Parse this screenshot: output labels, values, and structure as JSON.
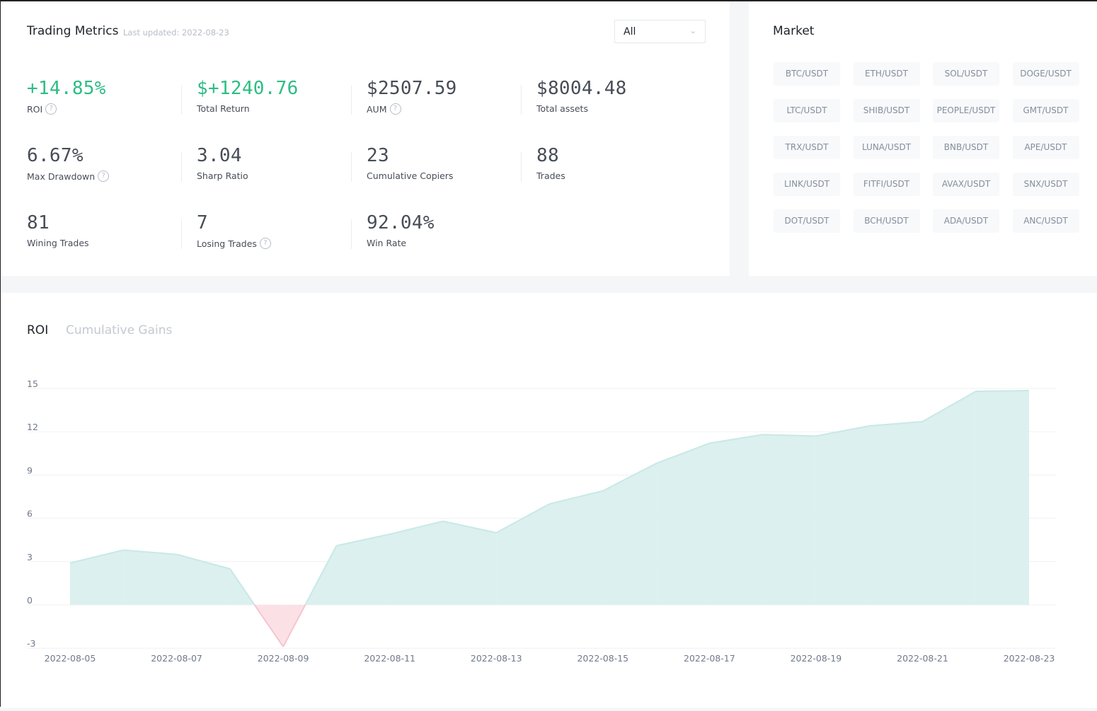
{
  "metrics": {
    "title": "Trading Metrics",
    "last_updated": "Last updated: 2022-08-23",
    "filter": "All",
    "items": [
      {
        "value": "+14.85%",
        "label": "ROI",
        "help": true,
        "green": true
      },
      {
        "value": "$+1240.76",
        "label": "Total Return",
        "help": false,
        "green": true
      },
      {
        "value": "$2507.59",
        "label": "AUM",
        "help": true,
        "green": false
      },
      {
        "value": "$8004.48",
        "label": "Total assets",
        "help": false,
        "green": false
      },
      {
        "value": "6.67%",
        "label": "Max Drawdown",
        "help": true,
        "green": false
      },
      {
        "value": "3.04",
        "label": "Sharp Ratio",
        "help": false,
        "green": false
      },
      {
        "value": "23",
        "label": "Cumulative Copiers",
        "help": false,
        "green": false
      },
      {
        "value": "88",
        "label": "Trades",
        "help": false,
        "green": false
      },
      {
        "value": "81",
        "label": "Wining Trades",
        "help": false,
        "green": false
      },
      {
        "value": "7",
        "label": "Losing Trades",
        "help": true,
        "green": false
      },
      {
        "value": "92.04%",
        "label": "Win Rate",
        "help": false,
        "green": false
      }
    ]
  },
  "market": {
    "title": "Market",
    "pairs": [
      "BTC/USDT",
      "ETH/USDT",
      "SOL/USDT",
      "DOGE/USDT",
      "LTC/USDT",
      "SHIB/USDT",
      "PEOPLE/USDT",
      "GMT/USDT",
      "TRX/USDT",
      "LUNA/USDT",
      "BNB/USDT",
      "APE/USDT",
      "LINK/USDT",
      "FITFI/USDT",
      "AVAX/USDT",
      "SNX/USDT",
      "DOT/USDT",
      "BCH/USDT",
      "ADA/USDT",
      "ANC/USDT"
    ]
  },
  "chart_tabs": {
    "active": "ROI",
    "inactive": "Cumulative Gains"
  },
  "chart_data": {
    "type": "area",
    "title": "ROI",
    "ylim": [
      -3,
      15
    ],
    "yticks": [
      15,
      12,
      9,
      6,
      3,
      0,
      -3
    ],
    "x": [
      "2022-08-05",
      "2022-08-06",
      "2022-08-07",
      "2022-08-08",
      "2022-08-09",
      "2022-08-10",
      "2022-08-11",
      "2022-08-12",
      "2022-08-13",
      "2022-08-14",
      "2022-08-15",
      "2022-08-16",
      "2022-08-17",
      "2022-08-18",
      "2022-08-19",
      "2022-08-20",
      "2022-08-21",
      "2022-08-22",
      "2022-08-23"
    ],
    "xticks": [
      "2022-08-05",
      "2022-08-07",
      "2022-08-09",
      "2022-08-11",
      "2022-08-13",
      "2022-08-15",
      "2022-08-17",
      "2022-08-19",
      "2022-08-21",
      "2022-08-23"
    ],
    "values": [
      2.9,
      3.8,
      3.5,
      2.5,
      -2.9,
      4.1,
      4.9,
      5.8,
      5.0,
      7.0,
      7.9,
      9.8,
      11.2,
      11.8,
      11.7,
      12.4,
      12.7,
      14.8,
      14.85
    ],
    "colors": {
      "positive": "#dbf0ef",
      "negative": "#fbe1e6",
      "line_pos": "#c8e9e6",
      "line_neg": "#f6c5cf"
    }
  }
}
